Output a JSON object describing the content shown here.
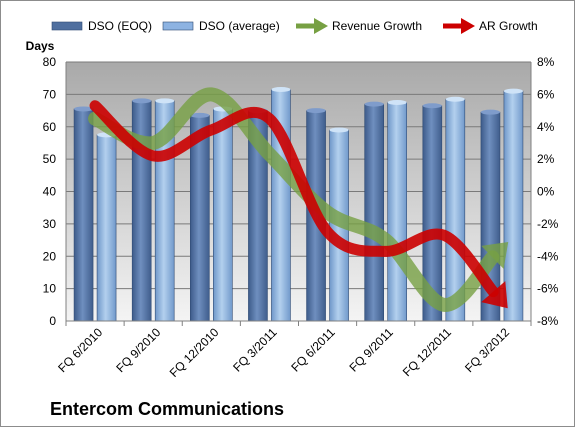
{
  "chart_data": {
    "type": "bar",
    "title": "Entercom Communications",
    "ylabel": "Days",
    "ylim": [
      0,
      80
    ],
    "y2lim": [
      -8,
      8
    ],
    "yticks": [
      "0",
      "10",
      "20",
      "30",
      "40",
      "50",
      "60",
      "70",
      "80"
    ],
    "y2ticks": [
      "-8%",
      "-6%",
      "-4%",
      "-2%",
      "0%",
      "2%",
      "4%",
      "6%",
      "8%"
    ],
    "categories": [
      "FQ 6/2010",
      "FQ 9/2010",
      "FQ 12/2010",
      "FQ 3/2011",
      "FQ 6/2011",
      "FQ 9/2011",
      "FQ 12/2011",
      "FQ 3/2012"
    ],
    "series": [
      {
        "name": "DSO (EOQ)",
        "kind": "bar",
        "axis": "left",
        "color": "#4f6f9f",
        "values": [
          65.5,
          68,
          63.5,
          65,
          65,
          67,
          66.5,
          64.5
        ]
      },
      {
        "name": "DSO (average)",
        "kind": "bar",
        "axis": "left",
        "color": "#8db3e2",
        "values": [
          57.5,
          68,
          65.5,
          71.5,
          59,
          67.5,
          68.5,
          71
        ]
      },
      {
        "name": "Revenue Growth",
        "kind": "arrow",
        "axis": "right",
        "color": "#77a043",
        "values": [
          4.5,
          3,
          6,
          2.3,
          -1.3,
          -3,
          -7,
          -3.5
        ]
      },
      {
        "name": "AR Growth",
        "kind": "arrow",
        "axis": "right",
        "color": "#cc0000",
        "values": [
          5.3,
          2.2,
          3.8,
          4.5,
          -2.5,
          -3.7,
          -2.7,
          -6.8
        ]
      }
    ],
    "grid": true,
    "legend": "top"
  }
}
